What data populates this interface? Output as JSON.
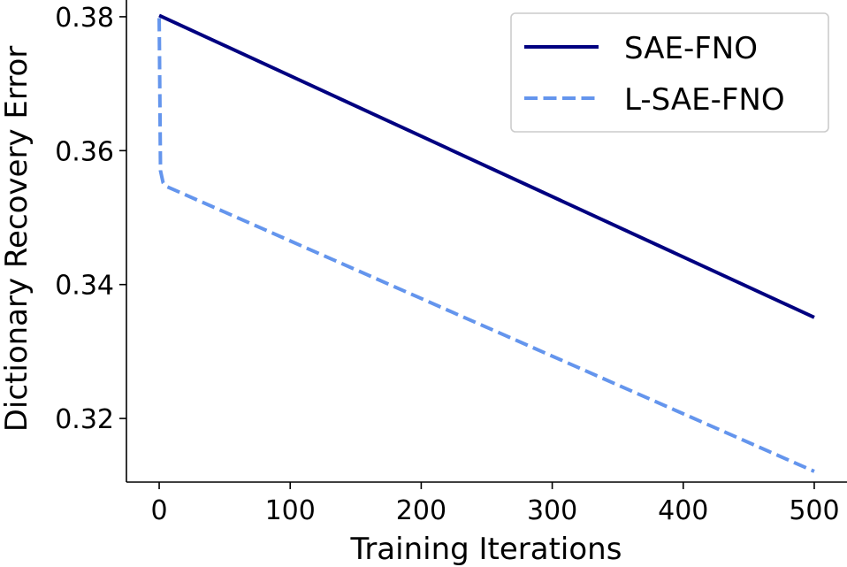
{
  "chart_data": {
    "type": "line",
    "title": "",
    "xlabel": "Training Iterations",
    "ylabel": "Dictionary Recovery Error",
    "xlim": [
      -25,
      525
    ],
    "ylim": [
      0.3105,
      0.3825
    ],
    "xticks": [
      0,
      100,
      200,
      300,
      400,
      500
    ],
    "xtick_labels": [
      "0",
      "100",
      "200",
      "300",
      "400",
      "500"
    ],
    "yticks": [
      0.32,
      0.34,
      0.36,
      0.38
    ],
    "ytick_labels": [
      "0.32",
      "0.34",
      "0.36",
      "0.38"
    ],
    "legend_position": "top-right",
    "grid": false,
    "series": [
      {
        "name": "SAE-FNO",
        "color": "#000080",
        "style": "solid",
        "x": [
          0,
          500
        ],
        "y": [
          0.3802,
          0.3351
        ]
      },
      {
        "name": "L-SAE-FNO",
        "color": "#6495ed",
        "style": "dashed",
        "x": [
          0,
          1,
          3,
          5,
          500
        ],
        "y": [
          0.3798,
          0.357,
          0.3552,
          0.3547,
          0.3121
        ]
      }
    ]
  }
}
